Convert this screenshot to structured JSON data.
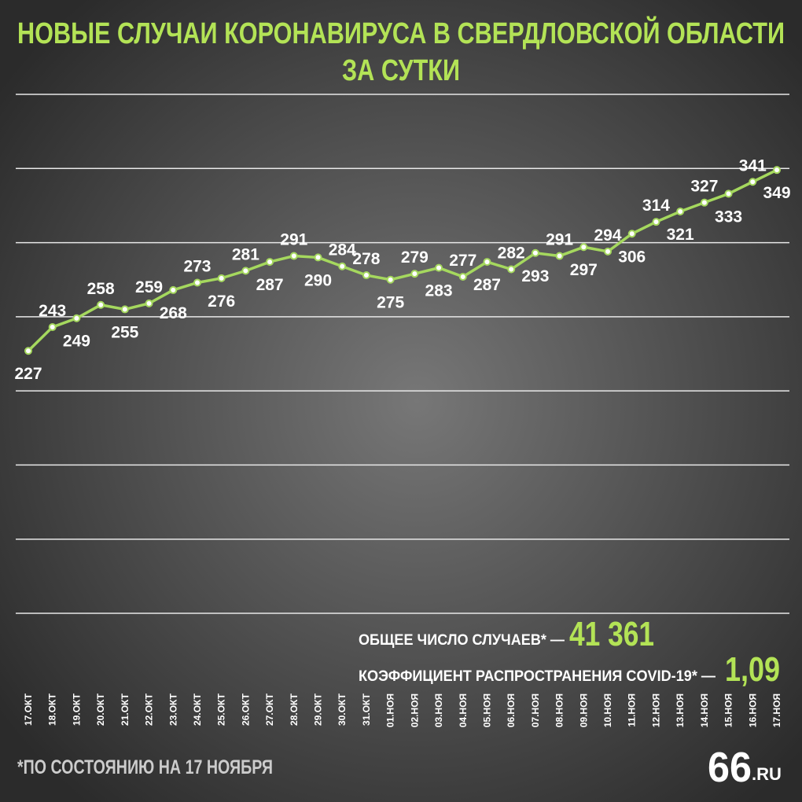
{
  "chart_data": {
    "type": "line",
    "title": [
      "НОВЫЕ СЛУЧАИ КОРОНАВИРУСА В СВЕРДЛОВСКОЙ ОБЛАСТИ",
      "ЗА СУТКИ"
    ],
    "categories": [
      "17.ОКТ",
      "18.ОКТ",
      "19.ОКТ",
      "20.ОКТ",
      "21.ОКТ",
      "22.ОКТ",
      "23.ОКТ",
      "24.ОКТ",
      "25.ОКТ",
      "26.ОКТ",
      "27.ОКТ",
      "28.ОКТ",
      "29.ОКТ",
      "30.ОКТ",
      "31.ОКТ",
      "01.НОЯ",
      "02.НОЯ",
      "03.НОЯ",
      "04.НОЯ",
      "05.НОЯ",
      "06.НОЯ",
      "07.НОЯ",
      "08.НОЯ",
      "09.НОЯ",
      "10.НОЯ",
      "11.НОЯ",
      "12.НОЯ",
      "13.НОЯ",
      "14.НОЯ",
      "15.НОЯ",
      "16.НОЯ",
      "17.НОЯ"
    ],
    "values": [
      227,
      243,
      249,
      258,
      255,
      259,
      268,
      273,
      276,
      281,
      287,
      291,
      290,
      284,
      278,
      275,
      279,
      283,
      277,
      287,
      282,
      293,
      291,
      297,
      294,
      306,
      314,
      321,
      327,
      333,
      341,
      349
    ],
    "color": "#a5d85e",
    "ylim": [
      30,
      410
    ],
    "yticks": [
      50,
      100,
      150,
      200,
      250,
      300,
      350,
      400
    ],
    "grid": true,
    "annotations": [
      {
        "label": "ОБЩЕЕ ЧИСЛО СЛУЧАЕВ* —",
        "value": "41 361"
      },
      {
        "label": "КОЭФФИЦИЕНТ РАСПРОСТРАНЕНИЯ COVID-19* —",
        "value": "1,09"
      }
    ],
    "footnote": "*ПО СОСТОЯНИЮ НА 17 НОЯБРЯ",
    "logo": [
      "66",
      ".RU"
    ]
  }
}
